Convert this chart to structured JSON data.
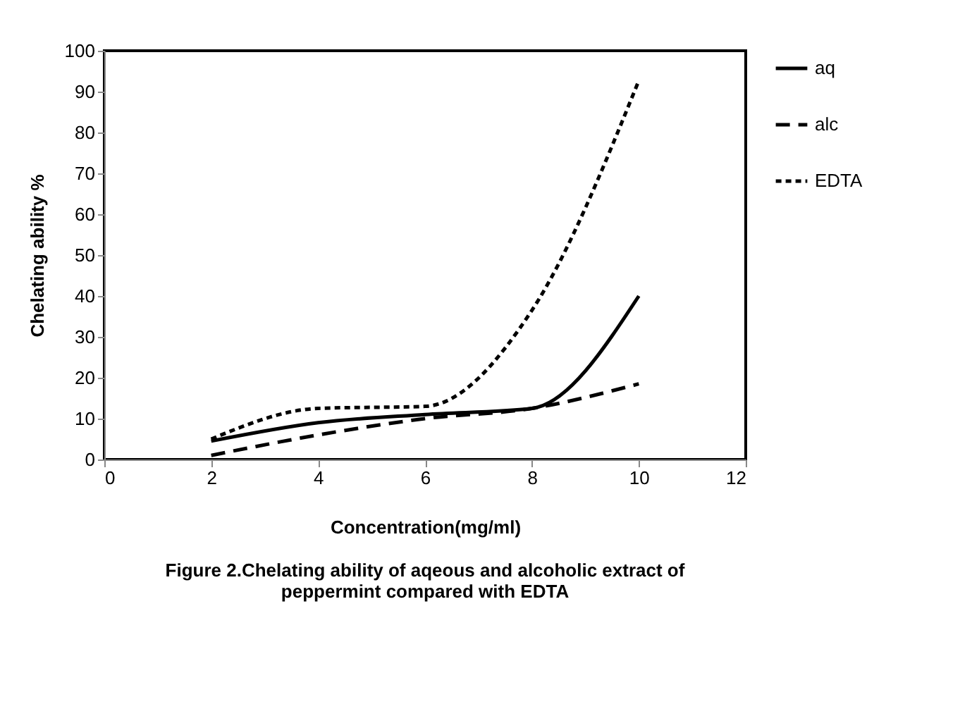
{
  "chart_data": {
    "type": "line",
    "title": "Figure 2.Chelating ability of aqeous and alcoholic  extract of\npeppermint compared with EDTA",
    "xlabel": "Concentration(mg/ml)",
    "ylabel": "Chelating ability %",
    "x": [
      2,
      4,
      6,
      8,
      10
    ],
    "series": [
      {
        "name": "aq",
        "color": "#000000",
        "line_style": "solid",
        "values": [
          4.5,
          9,
          11,
          12.5,
          40
        ]
      },
      {
        "name": "alc",
        "color": "#000000",
        "line_style": "dashed",
        "values": [
          1,
          6,
          10,
          12.5,
          18.5
        ]
      },
      {
        "name": "EDTA",
        "color": "#000000",
        "line_style": "dotted",
        "values": [
          5,
          12.5,
          13,
          36.5,
          92.7
        ]
      }
    ],
    "xlim": [
      0,
      12
    ],
    "xticks": [
      0,
      2,
      4,
      6,
      8,
      10,
      12
    ],
    "ylim": [
      0,
      100
    ],
    "yticks": [
      0,
      10,
      20,
      30,
      40,
      50,
      60,
      70,
      80,
      90,
      100
    ],
    "grid": false,
    "legend": "right",
    "marker": "none"
  }
}
